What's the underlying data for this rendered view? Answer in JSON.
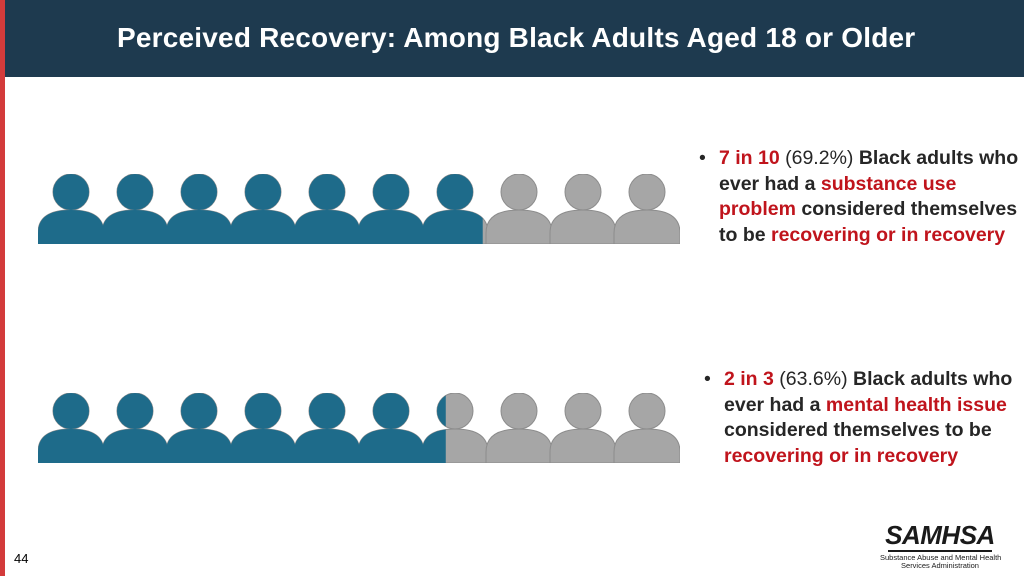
{
  "title": "Perceived Recovery: Among Black Adults Aged 18 or Older",
  "page_number": "44",
  "colors": {
    "filled": "#1e6b8a",
    "empty": "#a6a6a6",
    "highlight": "#c0141c",
    "title_bar": "#1e3a4f",
    "accent": "#d33b3b"
  },
  "chart_data": [
    {
      "type": "pictograph",
      "icons_total": 10,
      "percent": 69.2,
      "ratio_label": "7 in 10",
      "pct_label": "(69.2%)",
      "text_1": " Black adults who ever had a ",
      "highlight_1": "substance use problem",
      "text_2": " considered themselves to be ",
      "highlight_2": "recovering or in recovery"
    },
    {
      "type": "pictograph",
      "icons_total": 10,
      "percent": 63.6,
      "ratio_label": "2 in 3",
      "pct_label": "(63.6%)",
      "text_1": " Black adults who ever had a ",
      "highlight_1": "mental health issue",
      "text_2": " considered themselves to be ",
      "highlight_2": "recovering or in recovery"
    }
  ],
  "logo": {
    "name": "SAMHSA",
    "subtitle_line1": "Substance Abuse and Mental Health",
    "subtitle_line2": "Services Administration"
  }
}
